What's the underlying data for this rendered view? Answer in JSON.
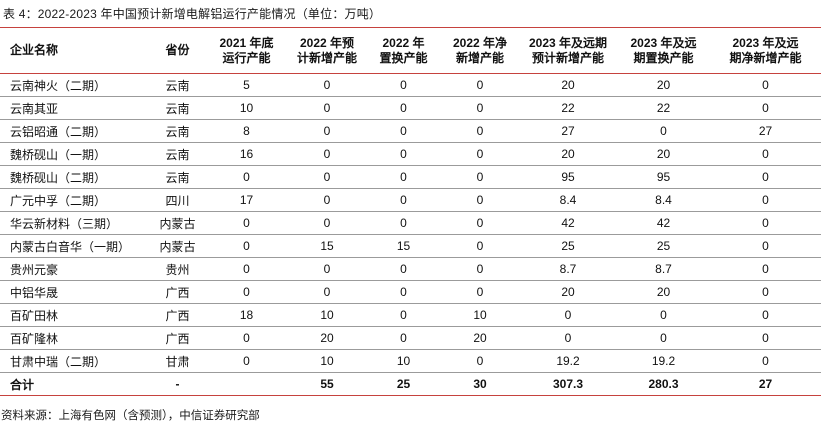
{
  "title": "表 4：2022-2023 年中国预计新增电解铝运行产能情况（单位：万吨）",
  "source_note": "资料来源：上海有色网（含预测），中信证券研究部",
  "colors": {
    "accent_red": "#c6423e",
    "row_line_gray": "#9b9b9b",
    "text": "#111111"
  },
  "table": {
    "headers": [
      "企业名称",
      "省份",
      "2021 年底\n运行产能",
      "2022 年预\n计新增产能",
      "2022 年\n置换产能",
      "2022 年净\n新增产能",
      "2023 年及远期\n预计新增产能",
      "2023 年及远\n期置换产能",
      "2023 年及远\n期净新增产能"
    ],
    "rows": [
      {
        "name": "云南神火（二期）",
        "province": "云南",
        "values": [
          "5",
          "0",
          "0",
          "0",
          "20",
          "20",
          "0"
        ],
        "total": false
      },
      {
        "name": "云南其亚",
        "province": "云南",
        "values": [
          "10",
          "0",
          "0",
          "0",
          "22",
          "22",
          "0"
        ],
        "total": false
      },
      {
        "name": "云铝昭通（二期）",
        "province": "云南",
        "values": [
          "8",
          "0",
          "0",
          "0",
          "27",
          "0",
          "27"
        ],
        "total": false
      },
      {
        "name": "魏桥砚山（一期）",
        "province": "云南",
        "values": [
          "16",
          "0",
          "0",
          "0",
          "20",
          "20",
          "0"
        ],
        "total": false
      },
      {
        "name": "魏桥砚山（二期）",
        "province": "云南",
        "values": [
          "0",
          "0",
          "0",
          "0",
          "95",
          "95",
          "0"
        ],
        "total": false
      },
      {
        "name": "广元中孚（二期）",
        "province": "四川",
        "values": [
          "17",
          "0",
          "0",
          "0",
          "8.4",
          "8.4",
          "0"
        ],
        "total": false
      },
      {
        "name": "华云新材料（三期）",
        "province": "内蒙古",
        "values": [
          "0",
          "0",
          "0",
          "0",
          "42",
          "42",
          "0"
        ],
        "total": false
      },
      {
        "name": "内蒙古白音华（一期）",
        "province": "内蒙古",
        "values": [
          "0",
          "15",
          "15",
          "0",
          "25",
          "25",
          "0"
        ],
        "total": false
      },
      {
        "name": "贵州元豪",
        "province": "贵州",
        "values": [
          "0",
          "0",
          "0",
          "0",
          "8.7",
          "8.7",
          "0"
        ],
        "total": false
      },
      {
        "name": "中铝华晟",
        "province": "广西",
        "values": [
          "0",
          "0",
          "0",
          "0",
          "20",
          "20",
          "0"
        ],
        "total": false
      },
      {
        "name": "百矿田林",
        "province": "广西",
        "values": [
          "18",
          "10",
          "0",
          "10",
          "0",
          "0",
          "0"
        ],
        "total": false
      },
      {
        "name": "百矿隆林",
        "province": "广西",
        "values": [
          "0",
          "20",
          "0",
          "20",
          "0",
          "0",
          "0"
        ],
        "total": false
      },
      {
        "name": "甘肃中瑞（二期）",
        "province": "甘肃",
        "values": [
          "0",
          "10",
          "10",
          "0",
          "19.2",
          "19.2",
          "0"
        ],
        "total": false
      },
      {
        "name": "合计",
        "province": "-",
        "values": [
          "",
          "55",
          "25",
          "30",
          "307.3",
          "280.3",
          "27"
        ],
        "total": true
      }
    ]
  }
}
